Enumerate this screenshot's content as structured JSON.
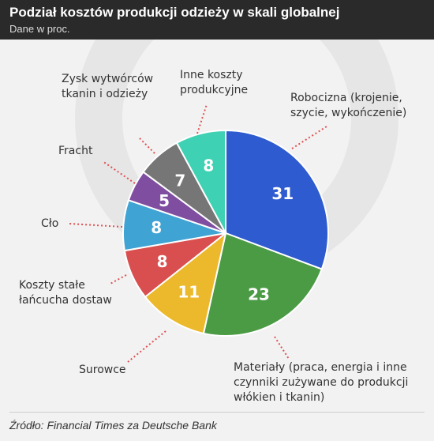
{
  "header": {
    "title": "Podział kosztów produkcji odzieży w skali globalnej",
    "subtitle": "Dane w proc."
  },
  "chart_data": {
    "type": "pie",
    "slices": [
      {
        "label": "Robocizna (krojenie, szycie, wykończenie)",
        "value": 31,
        "color": "#2e5bcf"
      },
      {
        "label": "Materiały (praca, energia i inne czynniki zużywane do produkcji włókien i tkanin)",
        "value": 23,
        "color": "#4b9b45"
      },
      {
        "label": "Surowce",
        "value": 11,
        "color": "#ebb92b"
      },
      {
        "label": "Koszty stałe łańcucha dostaw",
        "value": 8,
        "color": "#d94e4e"
      },
      {
        "label": "Cło",
        "value": 8,
        "color": "#3fa3d4"
      },
      {
        "label": "Fracht",
        "value": 5,
        "color": "#7f4ea1"
      },
      {
        "label": "Zysk wytwórców tkanin i odzieży",
        "value": 7,
        "color": "#767676"
      },
      {
        "label": "Inne koszty produkcyjne",
        "value": 8,
        "color": "#3fd1b3"
      }
    ],
    "label_lines": {
      "robocizna": [
        "Robocizna (krojenie,",
        "szycie, wykończenie)"
      ],
      "materialy": [
        "Materiały (praca, energia i inne",
        "czynniki zużywane do produkcji",
        "włókien i tkanin)"
      ],
      "surowce": [
        "Surowce"
      ],
      "koszty": [
        "Koszty stałe",
        "łańcucha dostaw"
      ],
      "clo": [
        "Cło"
      ],
      "fracht": [
        "Fracht"
      ],
      "zysk": [
        "Zysk wytwórców",
        "tkanin i odzieży"
      ],
      "inne": [
        "Inne koszty",
        "produkcyjne"
      ]
    }
  },
  "footer": {
    "source": "Źródło: Financial Times za Deutsche Bank"
  }
}
